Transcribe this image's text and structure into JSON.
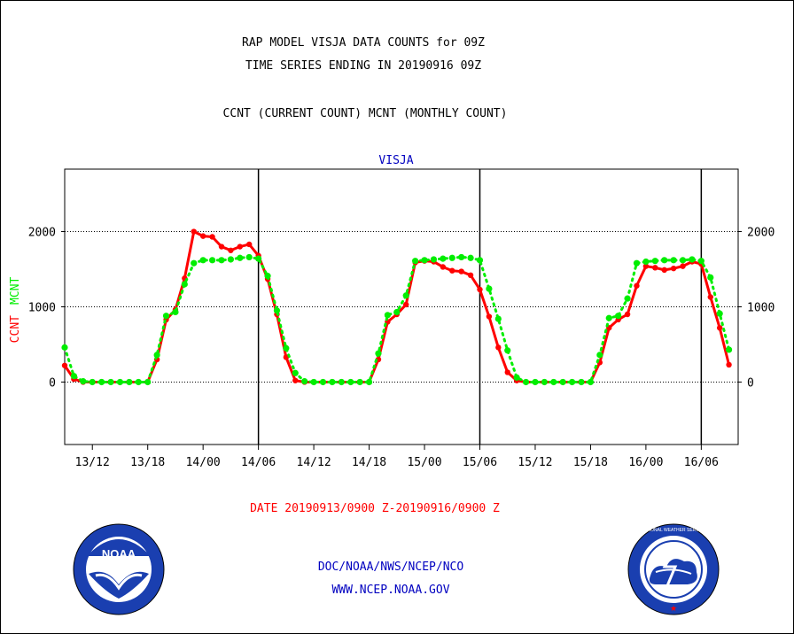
{
  "header": {
    "title_line1": "RAP MODEL VISJA DATA COUNTS for 09Z",
    "title_line2": "TIME SERIES ENDING IN 20190916 09Z",
    "subtitle": "CCNT (CURRENT COUNT) MCNT (MONTHLY COUNT)"
  },
  "footer": {
    "date_range": "DATE 20190913/0900 Z-20190916/0900 Z",
    "org": "DOC/NOAA/NWS/NCEP/NCO",
    "url": "WWW.NCEP.NOAA.GOV"
  },
  "logos": {
    "left": "NOAA",
    "right": "NATIONAL WEATHER SERVICE"
  },
  "colors": {
    "ccnt": "#ff0000",
    "mcnt": "#00ee00",
    "text": "#000000",
    "panel": "#0000c0"
  },
  "chart_data": {
    "type": "line",
    "title": "VISJA",
    "ylabel_parts": [
      {
        "text": "CCNT",
        "color": "#ff0000"
      },
      {
        "text": "MCNT",
        "color": "#00ee00"
      }
    ],
    "ylim": [
      -830,
      2830
    ],
    "xlim": [
      0,
      73
    ],
    "yticks": [
      0,
      1000,
      2000
    ],
    "ytick_labels": [
      "0",
      "1000",
      "2000"
    ],
    "xtick_positions": [
      3,
      9,
      15,
      21,
      27,
      33,
      39,
      45,
      51,
      57,
      63,
      69
    ],
    "xtick_labels": [
      "13/12",
      "13/18",
      "14/00",
      "14/06",
      "14/12",
      "14/18",
      "15/00",
      "15/06",
      "15/12",
      "15/18",
      "16/00",
      "16/06"
    ],
    "day_lines": [
      21,
      45,
      69
    ],
    "grid": "horizontal-dotted",
    "series": [
      {
        "name": "CCNT",
        "color": "#ff0000",
        "x": [
          0,
          1,
          2,
          3,
          4,
          5,
          6,
          7,
          8,
          9,
          10,
          11,
          12,
          13,
          14,
          15,
          16,
          17,
          18,
          19,
          20,
          21,
          22,
          23,
          24,
          25,
          26,
          27,
          28,
          29,
          30,
          31,
          32,
          33,
          34,
          35,
          36,
          37,
          38,
          39,
          40,
          41,
          42,
          43,
          44,
          45,
          46,
          47,
          48,
          49,
          50,
          51,
          52,
          53,
          54,
          55,
          56,
          57,
          58,
          59,
          60,
          61,
          62,
          63,
          64,
          65,
          66,
          67,
          68,
          69,
          70,
          71,
          72
        ],
        "values": [
          220,
          40,
          0,
          0,
          0,
          0,
          0,
          0,
          0,
          0,
          300,
          830,
          960,
          1380,
          2000,
          1940,
          1930,
          1800,
          1750,
          1800,
          1830,
          1680,
          1370,
          900,
          330,
          20,
          0,
          0,
          0,
          0,
          0,
          0,
          0,
          0,
          300,
          800,
          900,
          1030,
          1590,
          1610,
          1600,
          1530,
          1480,
          1470,
          1420,
          1230,
          870,
          460,
          130,
          20,
          0,
          0,
          0,
          0,
          0,
          0,
          0,
          0,
          260,
          720,
          830,
          900,
          1280,
          1540,
          1520,
          1490,
          1510,
          1540,
          1600,
          1570,
          1130,
          720,
          230
        ]
      },
      {
        "name": "MCNT",
        "color": "#00ee00",
        "x": [
          0,
          1,
          2,
          3,
          4,
          5,
          6,
          7,
          8,
          9,
          10,
          11,
          12,
          13,
          14,
          15,
          16,
          17,
          18,
          19,
          20,
          21,
          22,
          23,
          24,
          25,
          26,
          27,
          28,
          29,
          30,
          31,
          32,
          33,
          34,
          35,
          36,
          37,
          38,
          39,
          40,
          41,
          42,
          43,
          44,
          45,
          46,
          47,
          48,
          49,
          50,
          51,
          52,
          53,
          54,
          55,
          56,
          57,
          58,
          59,
          60,
          61,
          62,
          63,
          64,
          65,
          66,
          67,
          68,
          69,
          70,
          71,
          72
        ],
        "values": [
          460,
          80,
          10,
          0,
          0,
          0,
          0,
          0,
          0,
          0,
          360,
          880,
          930,
          1300,
          1580,
          1620,
          1620,
          1620,
          1630,
          1650,
          1660,
          1640,
          1410,
          950,
          450,
          120,
          10,
          0,
          0,
          0,
          0,
          0,
          0,
          0,
          380,
          890,
          930,
          1150,
          1610,
          1620,
          1630,
          1640,
          1650,
          1660,
          1650,
          1620,
          1240,
          840,
          420,
          60,
          0,
          0,
          0,
          0,
          0,
          0,
          0,
          0,
          360,
          850,
          880,
          1110,
          1580,
          1600,
          1610,
          1620,
          1620,
          1620,
          1630,
          1610,
          1390,
          910,
          430
        ]
      }
    ]
  }
}
